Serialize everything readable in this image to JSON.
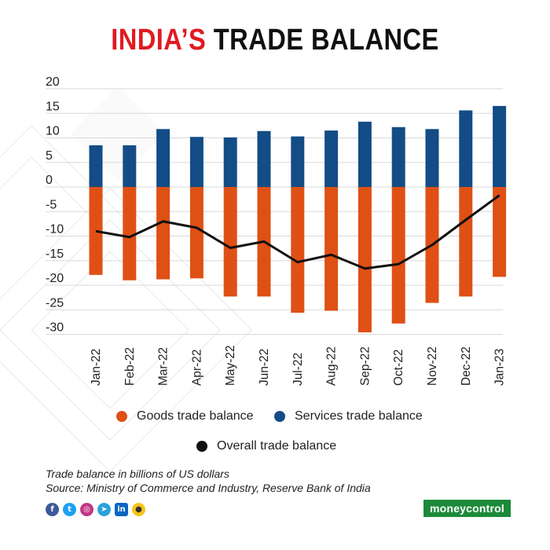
{
  "title": {
    "part1": "INDIA’S",
    "part2": "TRADE BALANCE"
  },
  "colors": {
    "goods": "#df5015",
    "services": "#134c86",
    "overall": "#111111",
    "title_red": "#e01b22",
    "brand_green": "#1c8a3a"
  },
  "chart_data": {
    "type": "bar",
    "categories": [
      "Jan-22",
      "Feb-22",
      "Mar-22",
      "Apr-22",
      "May-22",
      "Jun-22",
      "Jul-22",
      "Aug-22",
      "Sep-22",
      "Oct-22",
      "Nov-22",
      "Dec-22",
      "Jan-23"
    ],
    "series": [
      {
        "name": "Goods trade balance",
        "type": "bar",
        "values": [
          -17.9,
          -19.0,
          -18.8,
          -18.6,
          -22.3,
          -22.3,
          -25.6,
          -25.2,
          -29.6,
          -27.8,
          -23.6,
          -22.3,
          -18.3
        ]
      },
      {
        "name": "Services trade balance",
        "type": "bar",
        "values": [
          8.5,
          8.5,
          11.8,
          10.2,
          10.1,
          11.4,
          10.3,
          11.5,
          13.3,
          12.2,
          11.8,
          15.6,
          16.5
        ]
      },
      {
        "name": "Overall trade balance",
        "type": "line",
        "values": [
          -9.0,
          -10.2,
          -7.0,
          -8.3,
          -12.4,
          -11.1,
          -15.3,
          -13.8,
          -16.6,
          -15.7,
          -11.8,
          -6.7,
          -1.7
        ]
      }
    ],
    "yticks": [
      20,
      15,
      10,
      5,
      0,
      -5,
      -10,
      -15,
      -20,
      -25,
      -30
    ],
    "ylim": [
      -30,
      20
    ],
    "grid": true,
    "legend": "bottom"
  },
  "footnote": {
    "line1": "Trade balance in billions of US dollars",
    "line2": "Source: Ministry of Commerce and Industry, Reserve Bank of India"
  },
  "social_icons": [
    "facebook-icon",
    "twitter-icon",
    "instagram-icon",
    "telegram-icon",
    "linkedin-icon",
    "koo-icon"
  ],
  "brand": "moneycontrol"
}
